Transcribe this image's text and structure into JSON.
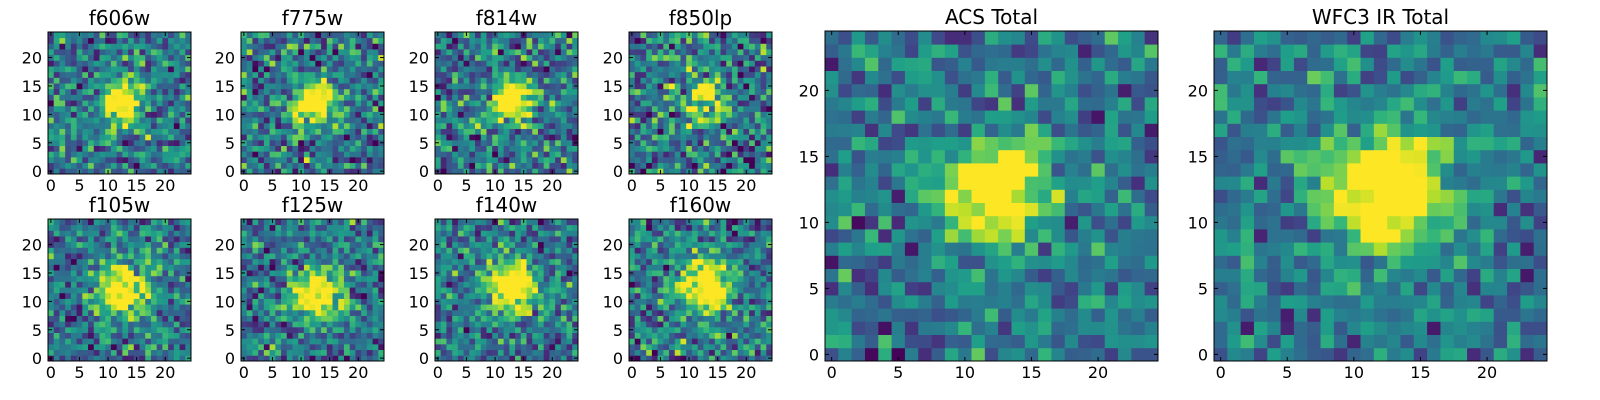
{
  "chart_data": [
    {
      "type": "heatmap",
      "title": "f606w",
      "xticks": [
        "0",
        "5",
        "10",
        "15",
        "20"
      ],
      "yticks": [
        "0",
        "5",
        "10",
        "15",
        "20"
      ],
      "xlim": [
        -0.5,
        24.5
      ],
      "ylim": [
        -0.5,
        24.5
      ],
      "grid": false,
      "colormap": "viridis",
      "source_center": [
        12.5,
        12.5
      ],
      "source_radius": 2.5,
      "source_peak": 0.9,
      "noise_seed": 11,
      "noise_level": 0.5
    },
    {
      "type": "heatmap",
      "title": "f775w",
      "xticks": [
        "0",
        "5",
        "10",
        "15",
        "20"
      ],
      "yticks": [
        "0",
        "5",
        "10",
        "15",
        "20"
      ],
      "xlim": [
        -0.5,
        24.5
      ],
      "ylim": [
        -0.5,
        24.5
      ],
      "grid": false,
      "colormap": "viridis",
      "source_center": [
        12.5,
        12
      ],
      "source_radius": 2.5,
      "source_peak": 0.95,
      "noise_seed": 23,
      "noise_level": 0.55
    },
    {
      "type": "heatmap",
      "title": "f814w",
      "xticks": [
        "0",
        "5",
        "10",
        "15",
        "20"
      ],
      "yticks": [
        "0",
        "5",
        "10",
        "15",
        "20"
      ],
      "xlim": [
        -0.5,
        24.5
      ],
      "ylim": [
        -0.5,
        24.5
      ],
      "grid": false,
      "colormap": "viridis",
      "source_center": [
        13,
        12.5
      ],
      "source_radius": 2.5,
      "source_peak": 0.9,
      "noise_seed": 37,
      "noise_level": 0.55
    },
    {
      "type": "heatmap",
      "title": "f850lp",
      "xticks": [
        "0",
        "5",
        "10",
        "15",
        "20"
      ],
      "yticks": [
        "0",
        "5",
        "10",
        "15",
        "20"
      ],
      "xlim": [
        -0.5,
        24.5
      ],
      "ylim": [
        -0.5,
        24.5
      ],
      "grid": false,
      "colormap": "viridis",
      "source_center": [
        12.5,
        12.5
      ],
      "source_radius": 2.5,
      "source_peak": 0.6,
      "noise_seed": 41,
      "noise_level": 0.6
    },
    {
      "type": "heatmap",
      "title": "f105w",
      "xticks": [
        "0",
        "5",
        "10",
        "15",
        "20"
      ],
      "yticks": [
        "0",
        "5",
        "10",
        "15",
        "20"
      ],
      "xlim": [
        -0.5,
        24.5
      ],
      "ylim": [
        -0.5,
        24.5
      ],
      "grid": false,
      "colormap": "viridis",
      "source_center": [
        12.5,
        12
      ],
      "source_radius": 3,
      "source_peak": 0.85,
      "noise_seed": 53,
      "noise_level": 0.45
    },
    {
      "type": "heatmap",
      "title": "f125w",
      "xticks": [
        "0",
        "5",
        "10",
        "15",
        "20"
      ],
      "yticks": [
        "0",
        "5",
        "10",
        "15",
        "20"
      ],
      "xlim": [
        -0.5,
        24.5
      ],
      "ylim": [
        -0.5,
        24.5
      ],
      "grid": false,
      "colormap": "viridis",
      "source_center": [
        12.5,
        11.5
      ],
      "source_radius": 3,
      "source_peak": 0.85,
      "noise_seed": 67,
      "noise_level": 0.45
    },
    {
      "type": "heatmap",
      "title": "f140w",
      "xticks": [
        "0",
        "5",
        "10",
        "15",
        "20"
      ],
      "yticks": [
        "0",
        "5",
        "10",
        "15",
        "20"
      ],
      "xlim": [
        -0.5,
        24.5
      ],
      "ylim": [
        -0.5,
        24.5
      ],
      "grid": false,
      "colormap": "viridis",
      "source_center": [
        13,
        12.5
      ],
      "source_radius": 3,
      "source_peak": 0.9,
      "noise_seed": 79,
      "noise_level": 0.45
    },
    {
      "type": "heatmap",
      "title": "f160w",
      "xticks": [
        "0",
        "5",
        "10",
        "15",
        "20"
      ],
      "yticks": [
        "0",
        "5",
        "10",
        "15",
        "20"
      ],
      "xlim": [
        -0.5,
        24.5
      ],
      "ylim": [
        -0.5,
        24.5
      ],
      "grid": false,
      "colormap": "viridis",
      "source_center": [
        13,
        12.5
      ],
      "source_radius": 3,
      "source_peak": 0.9,
      "noise_seed": 97,
      "noise_level": 0.5
    },
    {
      "type": "heatmap",
      "title": "ACS Total",
      "xticks": [
        "0",
        "5",
        "10",
        "15",
        "20"
      ],
      "yticks": [
        "0",
        "5",
        "10",
        "15",
        "20"
      ],
      "xlim": [
        -0.5,
        24.5
      ],
      "ylim": [
        -0.5,
        24.5
      ],
      "grid": false,
      "colormap": "viridis",
      "source_center": [
        12.5,
        12.5
      ],
      "source_radius": 2.6,
      "source_peak": 0.95,
      "noise_seed": 113,
      "noise_level": 0.35
    },
    {
      "type": "heatmap",
      "title": "WFC3 IR Total",
      "xticks": [
        "0",
        "5",
        "10",
        "15",
        "20"
      ],
      "yticks": [
        "0",
        "5",
        "10",
        "15",
        "20"
      ],
      "xlim": [
        -0.5,
        24.5
      ],
      "ylim": [
        -0.5,
        24.5
      ],
      "grid": false,
      "colormap": "viridis",
      "source_center": [
        12.5,
        12.5
      ],
      "source_radius": 3.2,
      "source_peak": 0.9,
      "noise_seed": 131,
      "noise_level": 0.3
    }
  ]
}
